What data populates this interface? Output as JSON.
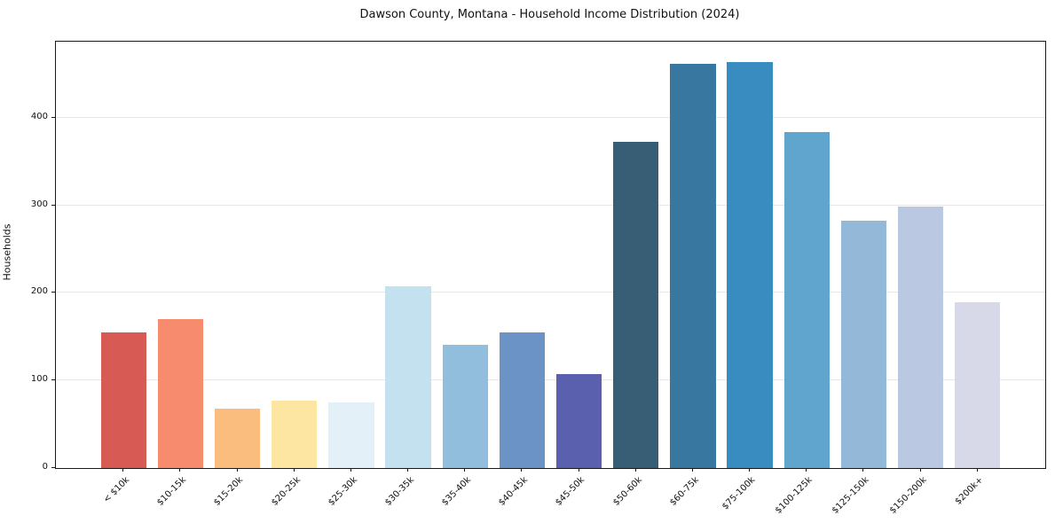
{
  "chart": {
    "title": "Dawson County, Montana - Household Income Distribution (2024)",
    "ylabel": "Households"
  },
  "chart_data": {
    "type": "bar",
    "title": "Dawson County, Montana - Household Income Distribution (2024)",
    "xlabel": "",
    "ylabel": "Households",
    "categories": [
      "< $10k",
      "$10-15k",
      "$15-20k",
      "$20-25k",
      "$25-30k",
      "$30-35k",
      "$35-40k",
      "$40-45k",
      "$45-50k",
      "$50-60k",
      "$60-75k",
      "$75-100k",
      "$100-125k",
      "$125-150k",
      "$150-200k",
      "$200k+"
    ],
    "values": [
      155,
      170,
      68,
      77,
      75,
      208,
      141,
      155,
      107,
      373,
      462,
      464,
      384,
      283,
      299,
      189
    ],
    "bar_colors": [
      "#d75a55",
      "#f68b6e",
      "#fbbd7e",
      "#fde5a2",
      "#e4f0f7",
      "#c3e1ef",
      "#92bede",
      "#6b93c6",
      "#5a5fae",
      "#375e74",
      "#3878a0",
      "#388cc0",
      "#5fa5ce",
      "#93b8d8",
      "#bac9e1",
      "#d8d9e8"
    ],
    "ylim": [
      0,
      487
    ],
    "yticks": [
      0,
      100,
      200,
      300,
      400
    ],
    "grid": "horizontal",
    "legend": false,
    "bar_width_fraction": 0.8,
    "x_axis_padding_units": 1.19
  }
}
